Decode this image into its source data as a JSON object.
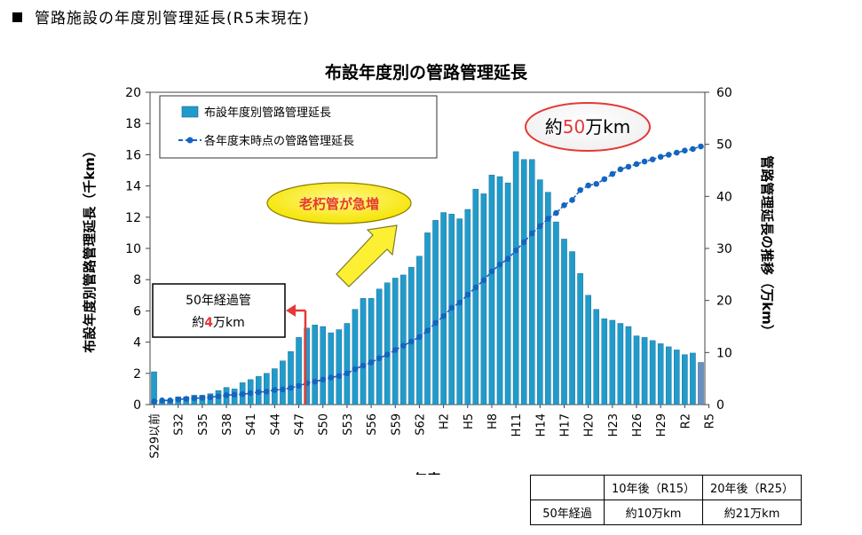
{
  "heading": "管路施設の年度別管理延長(R5末現在)",
  "chart_data": {
    "type": "bar",
    "title": "布設年度別の管路管理延長",
    "xlabel": "年度",
    "ylabel_left": "布設年度別管路管理延長（千km）",
    "ylabel_right": "管路管理延長の推移（万km）",
    "ylim_left": [
      0,
      20
    ],
    "ylim_right": [
      0,
      60
    ],
    "left_ticks": [
      "0",
      "2",
      "4",
      "6",
      "8",
      "10",
      "12",
      "14",
      "16",
      "18",
      "20"
    ],
    "right_ticks": [
      "0",
      "10",
      "20",
      "30",
      "40",
      "50",
      "60"
    ],
    "x_tick_labels": [
      "S29以前",
      "S32",
      "S35",
      "S38",
      "S41",
      "S44",
      "S47",
      "S50",
      "S53",
      "S56",
      "S59",
      "S62",
      "H2",
      "H5",
      "H8",
      "H11",
      "H14",
      "H17",
      "H20",
      "H23",
      "H26",
      "H29",
      "R2",
      "R5"
    ],
    "x_tick_every": 3,
    "series": [
      {
        "name": "布設年度別管路管理延長",
        "kind": "bar",
        "axis": "left",
        "color": "#1f9ccc",
        "values": [
          2.1,
          0.2,
          0.3,
          0.5,
          0.5,
          0.6,
          0.6,
          0.7,
          0.9,
          1.1,
          1.0,
          1.4,
          1.6,
          1.8,
          2.0,
          2.3,
          2.8,
          3.4,
          4.3,
          4.9,
          5.1,
          5.0,
          4.6,
          4.8,
          5.2,
          6.1,
          6.8,
          6.8,
          7.4,
          7.8,
          8.1,
          8.3,
          8.8,
          9.5,
          11.0,
          11.8,
          12.3,
          12.2,
          11.9,
          12.5,
          13.8,
          13.5,
          14.7,
          14.6,
          14.2,
          16.2,
          15.7,
          15.7,
          14.4,
          13.6,
          11.7,
          10.6,
          9.8,
          8.4,
          7.0,
          6.1,
          5.5,
          5.4,
          5.2,
          5.0,
          4.4,
          4.3,
          4.1,
          3.9,
          3.7,
          3.5,
          3.2,
          3.3,
          2.7
        ]
      },
      {
        "name": "各年度末時点の管路管理延長",
        "kind": "line",
        "axis": "right",
        "color": "#1565c0",
        "values": [
          0.6,
          0.8,
          0.8,
          1.0,
          1.1,
          1.2,
          1.3,
          1.4,
          1.6,
          1.8,
          1.9,
          2.0,
          2.2,
          2.4,
          2.5,
          2.8,
          2.9,
          3.2,
          3.6,
          4.1,
          4.4,
          4.8,
          5.2,
          5.5,
          6.0,
          6.8,
          7.5,
          8.1,
          8.9,
          9.6,
          10.5,
          11.3,
          12.1,
          13.0,
          14.2,
          15.7,
          17.0,
          18.6,
          19.6,
          21.1,
          22.5,
          23.9,
          25.6,
          26.9,
          28.0,
          29.6,
          31.2,
          32.9,
          34.3,
          35.7,
          36.8,
          38.3,
          39.3,
          41.2,
          42.1,
          42.4,
          43.3,
          44.3,
          45.2,
          45.7,
          46.2,
          46.7,
          47.1,
          47.6,
          48.0,
          48.4,
          48.8,
          49.1,
          49.6
        ]
      }
    ],
    "legend": [
      "布設年度別管路管理延長",
      "各年度末時点の管路管理延長"
    ],
    "legend_position": "top-left",
    "annotations": {
      "total_prefix": "約",
      "total_value": "50",
      "total_unit": "万km",
      "callout_increase": "老朽管が急増",
      "box_line1": "50年経過管",
      "box_line2_prefix": "約",
      "box_line2_value": "4",
      "box_line2_unit": "万km"
    }
  },
  "forecast_table": {
    "headers": [
      "",
      "10年後（R15）",
      "20年後（R25）"
    ],
    "rows": [
      [
        "50年経過",
        "約10万km",
        "約21万km"
      ]
    ]
  },
  "colors": {
    "bar_fill": "#1f9ccc",
    "bar_last": "#6c8ebf",
    "line": "#1565c0",
    "red": "#e53935",
    "yellow": "#fdf033"
  }
}
